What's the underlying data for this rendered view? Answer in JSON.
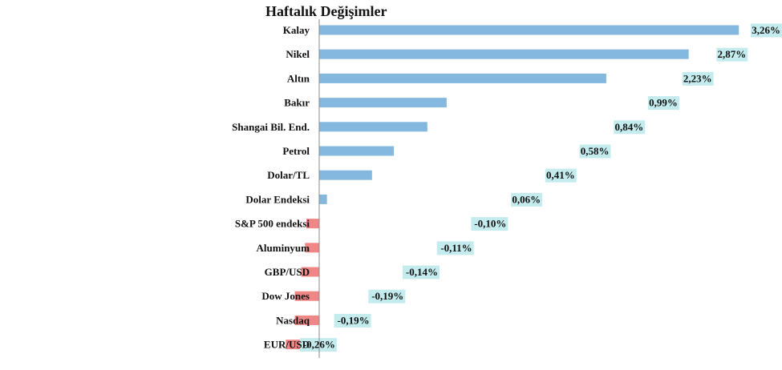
{
  "chart_data": {
    "type": "bar",
    "orientation": "horizontal",
    "title": "Haftalık Değişimler",
    "categories": [
      "Kalay",
      "Nikel",
      "Altın",
      "Bakır",
      "Shangai Bil. End.",
      "Petrol",
      "Dolar/TL",
      "Dolar Endeksi",
      "S&P 500 endeksi",
      "Aluminyum",
      "GBP/USD",
      "Dow Jones",
      "Nasdaq",
      "EUR/USD"
    ],
    "values": [
      3.26,
      2.87,
      2.23,
      0.99,
      0.84,
      0.58,
      0.41,
      0.06,
      -0.1,
      -0.11,
      -0.14,
      -0.19,
      -0.19,
      -0.26
    ],
    "data_labels": [
      "3,26%",
      "2,87%",
      "2,23%",
      "0,99%",
      "0,84%",
      "0,58%",
      "0,41%",
      "0,06%",
      "-0,10%",
      "-0,11%",
      "-0,14%",
      "-0,19%",
      "-0,19%",
      "-0,26%"
    ],
    "xlabel": "",
    "ylabel": "",
    "grid": false,
    "legend": "none",
    "colors": {
      "positive": "#85b8df",
      "negative": "#f08787",
      "label_bg": "#c4ecee",
      "axis": "#888888"
    }
  }
}
